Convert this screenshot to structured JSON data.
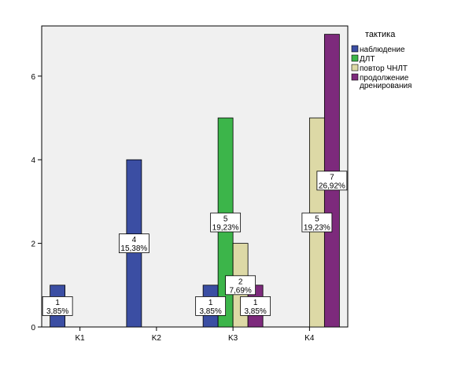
{
  "chart_data": {
    "type": "bar",
    "categories": [
      "K1",
      "K2",
      "K3",
      "K4"
    ],
    "ylim": [
      0,
      7.2
    ],
    "yticks": [
      0,
      2,
      4,
      6
    ],
    "grid": false,
    "legend_title": "тактика",
    "legend_position": "right",
    "series": [
      {
        "name": "наблюдение",
        "color": "#3b4ea3",
        "values": [
          1,
          4,
          1,
          0
        ]
      },
      {
        "name": "ДЛТ",
        "color": "#3cb54a",
        "values": [
          0,
          0,
          5,
          0
        ]
      },
      {
        "name": "повтор ЧНЛТ",
        "color": "#ddd9a6",
        "values": [
          0,
          0,
          2,
          5
        ]
      },
      {
        "name": "продолжение дренирования",
        "color": "#7d2a7c",
        "values": [
          0,
          0,
          1,
          7
        ]
      }
    ],
    "data_labels": [
      {
        "series": 0,
        "category": 0,
        "count": "1",
        "percent": "3,85%"
      },
      {
        "series": 0,
        "category": 1,
        "count": "4",
        "percent": "15,38%"
      },
      {
        "series": 0,
        "category": 2,
        "count": "1",
        "percent": "3,85%"
      },
      {
        "series": 1,
        "category": 2,
        "count": "5",
        "percent": "19,23%"
      },
      {
        "series": 2,
        "category": 2,
        "count": "2",
        "percent": "7,69%"
      },
      {
        "series": 3,
        "category": 2,
        "count": "1",
        "percent": "3,85%"
      },
      {
        "series": 2,
        "category": 3,
        "count": "5",
        "percent": "19,23%"
      },
      {
        "series": 3,
        "category": 3,
        "count": "7",
        "percent": "26,92%"
      }
    ]
  }
}
